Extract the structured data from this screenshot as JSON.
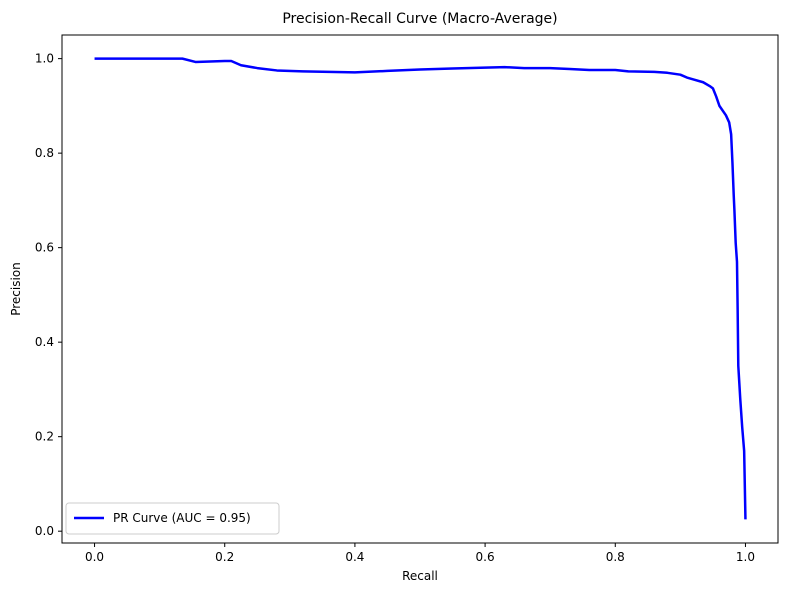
{
  "chart_data": {
    "type": "line",
    "title": "Precision-Recall Curve (Macro-Average)",
    "xlabel": "Recall",
    "ylabel": "Precision",
    "xlim": [
      -0.05,
      1.05
    ],
    "ylim": [
      -0.025,
      1.05
    ],
    "xticks": [
      0.0,
      0.2,
      0.4,
      0.6,
      0.8,
      1.0
    ],
    "xtick_labels": [
      "0.0",
      "0.2",
      "0.4",
      "0.6",
      "0.8",
      "1.0"
    ],
    "yticks": [
      0.0,
      0.2,
      0.4,
      0.6,
      0.8,
      1.0
    ],
    "ytick_labels": [
      "0.0",
      "0.2",
      "0.4",
      "0.6",
      "0.8",
      "1.0"
    ],
    "grid": false,
    "legend_position": "lower-left",
    "series": [
      {
        "name": "PR Curve (AUC = 0.95)",
        "color": "#0000ff",
        "x": [
          0.0,
          0.05,
          0.1,
          0.135,
          0.155,
          0.2,
          0.21,
          0.225,
          0.25,
          0.28,
          0.32,
          0.36,
          0.4,
          0.45,
          0.5,
          0.55,
          0.6,
          0.63,
          0.66,
          0.7,
          0.73,
          0.76,
          0.8,
          0.82,
          0.86,
          0.88,
          0.9,
          0.91,
          0.92,
          0.935,
          0.945,
          0.95,
          0.955,
          0.96,
          0.97,
          0.975,
          0.978,
          0.98,
          0.982,
          0.983,
          0.985,
          0.987,
          0.988,
          0.989,
          0.992,
          0.995,
          0.998,
          1.0
        ],
        "y": [
          1.0,
          1.0,
          1.0,
          1.0,
          0.993,
          0.995,
          0.995,
          0.986,
          0.98,
          0.975,
          0.973,
          0.972,
          0.971,
          0.974,
          0.977,
          0.979,
          0.981,
          0.982,
          0.98,
          0.98,
          0.978,
          0.976,
          0.976,
          0.973,
          0.972,
          0.97,
          0.966,
          0.96,
          0.956,
          0.95,
          0.942,
          0.937,
          0.92,
          0.9,
          0.88,
          0.865,
          0.84,
          0.78,
          0.71,
          0.68,
          0.61,
          0.57,
          0.47,
          0.35,
          0.28,
          0.22,
          0.17,
          0.025
        ]
      }
    ]
  }
}
